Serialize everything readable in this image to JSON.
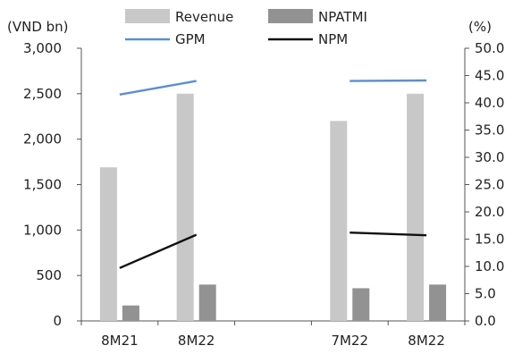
{
  "chart_data": {
    "type": "bar",
    "title": "",
    "categories": [
      "8M21",
      "8M22",
      "",
      "7M22",
      "8M22"
    ],
    "series": [
      {
        "name": "Revenue",
        "kind": "bar",
        "axis": "left",
        "values": [
          1690,
          2500,
          null,
          2200,
          2500
        ],
        "color": "#c8c8c8"
      },
      {
        "name": "NPATMI",
        "kind": "bar",
        "axis": "left",
        "values": [
          170,
          400,
          null,
          360,
          400
        ],
        "color": "#929292"
      },
      {
        "name": "GPM",
        "kind": "line",
        "axis": "right",
        "values": [
          41.5,
          44.0,
          null,
          44.0,
          44.1
        ],
        "color": "#5b8fd0"
      },
      {
        "name": "NPM",
        "kind": "line",
        "axis": "right",
        "values": [
          9.7,
          15.8,
          null,
          16.2,
          15.7
        ],
        "color": "#111111"
      }
    ],
    "y_left": {
      "label": "(VND bn)",
      "min": 0,
      "max": 3000,
      "ticks": [
        "0",
        "500",
        "1,000",
        "1,500",
        "2,000",
        "2,500",
        "3,000"
      ]
    },
    "y_right": {
      "label": "(%)",
      "min": 0,
      "max": 50,
      "ticks": [
        "0.0",
        "5.0",
        "10.0",
        "15.0",
        "20.0",
        "25.0",
        "30.0",
        "35.0",
        "40.0",
        "45.0",
        "50.0"
      ]
    },
    "line_segments": [
      [
        0,
        1
      ],
      [
        3,
        4
      ]
    ],
    "grid": false,
    "legend": {
      "position": "top",
      "columns": 2
    }
  }
}
